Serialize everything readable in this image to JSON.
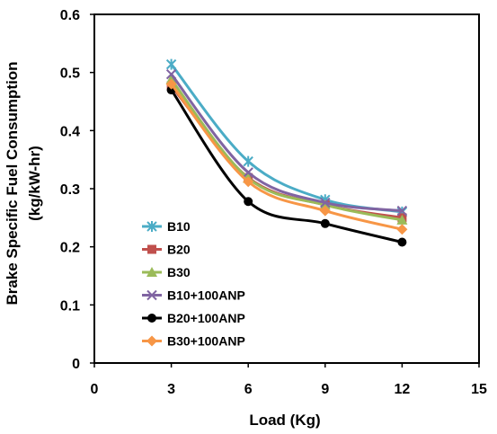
{
  "chart_data": {
    "type": "line",
    "title": "",
    "xlabel": "Load (Kg)",
    "ylabel_line1": "Brake Specific Fuel Consumption",
    "ylabel_line2": "(kg/kW-hr)",
    "xlim": [
      0,
      15
    ],
    "ylim": [
      0,
      0.6
    ],
    "x_ticks": [
      0,
      3,
      6,
      9,
      12,
      15
    ],
    "y_ticks": [
      0,
      0.1,
      0.2,
      0.3,
      0.4,
      0.5,
      0.6
    ],
    "x_tick_labels": [
      "0",
      "3",
      "6",
      "9",
      "12",
      "15"
    ],
    "y_tick_labels": [
      "0",
      "0.1",
      "0.2",
      "0.3",
      "0.4",
      "0.5",
      "0.6"
    ],
    "grid": false,
    "smooth": true,
    "legend_position": "left-bottom inside plot",
    "x": [
      3,
      6,
      9,
      12
    ],
    "series": [
      {
        "name": "B10",
        "values": [
          0.514,
          0.347,
          0.281,
          0.26
        ],
        "color": "#4bacc6",
        "marker": "star"
      },
      {
        "name": "B20",
        "values": [
          0.477,
          0.319,
          0.272,
          0.25
        ],
        "color": "#c0504d",
        "marker": "square"
      },
      {
        "name": "B30",
        "values": [
          0.488,
          0.318,
          0.272,
          0.246
        ],
        "color": "#9bbb59",
        "marker": "triangle"
      },
      {
        "name": "B10+100ANP",
        "values": [
          0.497,
          0.328,
          0.276,
          0.262
        ],
        "color": "#8064a2",
        "marker": "x"
      },
      {
        "name": "B20+100ANP",
        "values": [
          0.47,
          0.278,
          0.24,
          0.208
        ],
        "color": "#000000",
        "marker": "circle"
      },
      {
        "name": "B30+100ANP",
        "values": [
          0.48,
          0.312,
          0.262,
          0.23
        ],
        "color": "#f79646",
        "marker": "diamond"
      }
    ]
  }
}
